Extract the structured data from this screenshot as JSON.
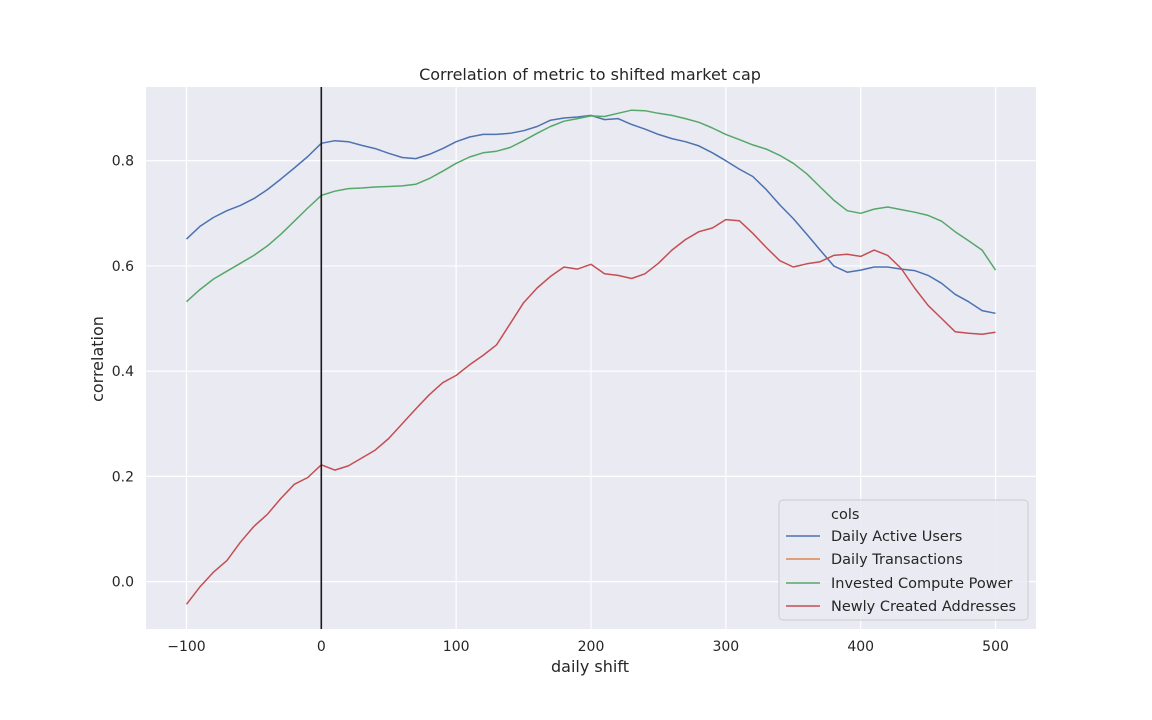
{
  "chart_data": {
    "type": "line",
    "title": "Correlation of metric to shifted market cap",
    "xlabel": "daily shift",
    "ylabel": "correlation",
    "xlim": [
      -130,
      530
    ],
    "ylim": [
      -0.09,
      0.94
    ],
    "xticks": [
      -100,
      0,
      100,
      200,
      300,
      400,
      500
    ],
    "xtick_labels": [
      "−100",
      "0",
      "100",
      "200",
      "300",
      "400",
      "500"
    ],
    "yticks": [
      0.0,
      0.2,
      0.4,
      0.6,
      0.8
    ],
    "ytick_labels": [
      "0.0",
      "0.2",
      "0.4",
      "0.6",
      "0.8"
    ],
    "grid": true,
    "vline_x": 0,
    "legend": {
      "title": "cols",
      "placement": "lower-right"
    },
    "series": [
      {
        "name": "Daily Active Users",
        "color": "#4c72b0",
        "x": [
          -100,
          -90,
          -80,
          -70,
          -60,
          -50,
          -40,
          -30,
          -20,
          -10,
          0,
          10,
          20,
          30,
          40,
          50,
          60,
          70,
          80,
          90,
          100,
          110,
          120,
          130,
          140,
          150,
          160,
          170,
          180,
          190,
          200,
          210,
          220,
          230,
          240,
          250,
          260,
          270,
          280,
          290,
          300,
          310,
          320,
          330,
          340,
          350,
          360,
          370,
          380,
          390,
          400,
          410,
          420,
          430,
          440,
          450,
          460,
          470,
          480,
          490,
          500
        ],
        "y": [
          0.651,
          0.675,
          0.692,
          0.705,
          0.715,
          0.728,
          0.745,
          0.765,
          0.786,
          0.808,
          0.833,
          0.838,
          0.836,
          0.829,
          0.823,
          0.814,
          0.806,
          0.804,
          0.812,
          0.823,
          0.836,
          0.845,
          0.85,
          0.85,
          0.852,
          0.857,
          0.865,
          0.877,
          0.881,
          0.883,
          0.886,
          0.878,
          0.88,
          0.869,
          0.86,
          0.85,
          0.842,
          0.836,
          0.828,
          0.815,
          0.8,
          0.784,
          0.77,
          0.745,
          0.716,
          0.69,
          0.66,
          0.63,
          0.6,
          0.588,
          0.592,
          0.598,
          0.598,
          0.594,
          0.591,
          0.582,
          0.567,
          0.546,
          0.532,
          0.515,
          0.51
        ]
      },
      {
        "name": "Daily Transactions",
        "color": "#dd8452",
        "x": [],
        "y": []
      },
      {
        "name": "Invested Compute Power",
        "color": "#55a868",
        "x": [
          -100,
          -90,
          -80,
          -70,
          -60,
          -50,
          -40,
          -30,
          -20,
          -10,
          0,
          10,
          20,
          30,
          40,
          50,
          60,
          70,
          80,
          90,
          100,
          110,
          120,
          130,
          140,
          150,
          160,
          170,
          180,
          190,
          200,
          210,
          220,
          230,
          240,
          250,
          260,
          270,
          280,
          290,
          300,
          310,
          320,
          330,
          340,
          350,
          360,
          370,
          380,
          390,
          400,
          410,
          420,
          430,
          440,
          450,
          460,
          470,
          480,
          490,
          500
        ],
        "y": [
          0.532,
          0.555,
          0.575,
          0.59,
          0.605,
          0.62,
          0.638,
          0.66,
          0.685,
          0.71,
          0.734,
          0.742,
          0.747,
          0.748,
          0.75,
          0.751,
          0.752,
          0.755,
          0.766,
          0.78,
          0.795,
          0.807,
          0.815,
          0.818,
          0.825,
          0.838,
          0.852,
          0.865,
          0.875,
          0.88,
          0.885,
          0.884,
          0.89,
          0.896,
          0.895,
          0.89,
          0.886,
          0.88,
          0.873,
          0.862,
          0.85,
          0.84,
          0.83,
          0.822,
          0.81,
          0.795,
          0.775,
          0.75,
          0.725,
          0.705,
          0.7,
          0.708,
          0.712,
          0.707,
          0.702,
          0.696,
          0.685,
          0.665,
          0.648,
          0.63,
          0.592
        ]
      },
      {
        "name": "Newly Created Addresses",
        "color": "#c44e52",
        "x": [
          -100,
          -90,
          -80,
          -70,
          -60,
          -50,
          -40,
          -30,
          -20,
          -10,
          0,
          10,
          20,
          30,
          40,
          50,
          60,
          70,
          80,
          90,
          100,
          110,
          120,
          130,
          140,
          150,
          160,
          170,
          180,
          190,
          200,
          210,
          220,
          230,
          240,
          250,
          260,
          270,
          280,
          290,
          300,
          310,
          320,
          330,
          340,
          350,
          360,
          370,
          380,
          390,
          400,
          410,
          420,
          430,
          440,
          450,
          460,
          470,
          480,
          490,
          500
        ],
        "y": [
          -0.043,
          -0.01,
          0.018,
          0.04,
          0.075,
          0.105,
          0.128,
          0.158,
          0.185,
          0.198,
          0.222,
          0.212,
          0.22,
          0.235,
          0.25,
          0.272,
          0.3,
          0.328,
          0.355,
          0.378,
          0.392,
          0.412,
          0.43,
          0.45,
          0.49,
          0.53,
          0.558,
          0.58,
          0.598,
          0.594,
          0.603,
          0.585,
          0.582,
          0.576,
          0.585,
          0.605,
          0.63,
          0.65,
          0.665,
          0.672,
          0.688,
          0.686,
          0.662,
          0.635,
          0.61,
          0.598,
          0.604,
          0.608,
          0.62,
          0.622,
          0.618,
          0.63,
          0.62,
          0.595,
          0.558,
          0.525,
          0.5,
          0.475,
          0.472,
          0.47,
          0.474
        ]
      }
    ]
  }
}
